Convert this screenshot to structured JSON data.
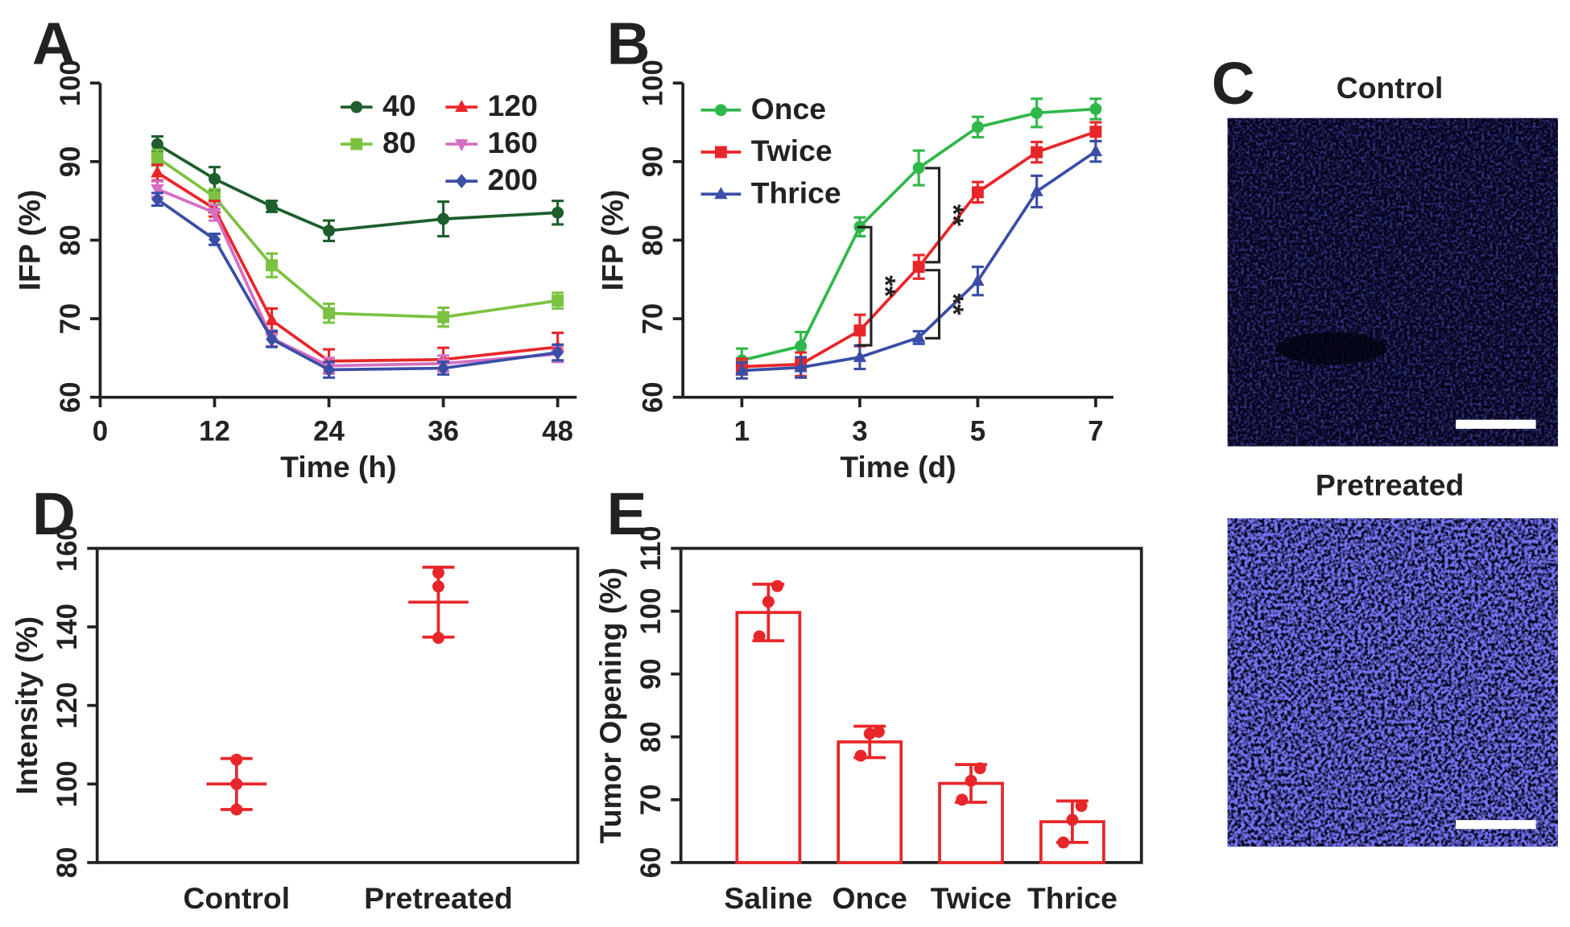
{
  "chart_data": [
    {
      "type": "line",
      "panel": "A",
      "xlabel": "Time (h)",
      "ylabel": "IFP (%)",
      "x": [
        6,
        12,
        18,
        24,
        36,
        48
      ],
      "xlim": [
        0,
        50
      ],
      "xticks": [
        0,
        12,
        24,
        36,
        48
      ],
      "ylim": [
        60,
        100
      ],
      "yticks": [
        60,
        70,
        80,
        90,
        100
      ],
      "legend": "upper right",
      "series": [
        {
          "name": "40",
          "color": "#1d5e2c",
          "marker": "circle",
          "values": [
            92.2,
            87.8,
            84.3,
            81.2,
            82.7,
            83.5
          ],
          "errors": [
            1.0,
            1.5,
            0.7,
            1.3,
            2.2,
            1.5
          ]
        },
        {
          "name": "80",
          "color": "#7cc242",
          "marker": "square",
          "values": [
            90.5,
            85.5,
            76.8,
            70.7,
            70.2,
            72.3
          ],
          "errors": [
            1.0,
            1.0,
            1.5,
            1.2,
            1.2,
            1.0
          ]
        },
        {
          "name": "120",
          "color": "#e8262a",
          "marker": "triangle-up",
          "values": [
            88.6,
            84.0,
            69.8,
            64.6,
            64.8,
            66.4
          ],
          "errors": [
            1.0,
            1.0,
            1.5,
            1.5,
            1.5,
            1.8
          ]
        },
        {
          "name": "160",
          "color": "#d46fc4",
          "marker": "triangle-down",
          "values": [
            86.5,
            83.5,
            67.5,
            64.0,
            64.3,
            65.5
          ],
          "errors": [
            1.0,
            1.0,
            1.0,
            1.0,
            1.0,
            1.0
          ]
        },
        {
          "name": "200",
          "color": "#3a4ea6",
          "marker": "diamond",
          "values": [
            85.2,
            80.1,
            67.4,
            63.5,
            63.7,
            65.7
          ],
          "errors": [
            0.8,
            0.7,
            1.0,
            1.0,
            0.8,
            1.0
          ]
        }
      ]
    },
    {
      "type": "line",
      "panel": "B",
      "xlabel": "Time (d)",
      "ylabel": "IFP (%)",
      "x": [
        1,
        2,
        3,
        4,
        5,
        6,
        7
      ],
      "xlim": [
        0,
        7.3
      ],
      "xticks": [
        1,
        3,
        5,
        7
      ],
      "ylim": [
        60,
        100
      ],
      "yticks": [
        60,
        70,
        80,
        90,
        100
      ],
      "legend": "upper left",
      "series": [
        {
          "name": "Once",
          "color": "#2fb84a",
          "marker": "circle",
          "values": [
            64.7,
            66.5,
            81.7,
            89.2,
            94.4,
            96.2,
            96.7
          ],
          "errors": [
            1.5,
            1.8,
            1.2,
            2.2,
            1.3,
            1.8,
            1.3
          ]
        },
        {
          "name": "Twice",
          "color": "#e8262a",
          "marker": "square",
          "values": [
            63.9,
            64.2,
            68.5,
            76.6,
            86.1,
            91.2,
            93.8
          ],
          "errors": [
            1.0,
            1.5,
            2.0,
            1.5,
            1.3,
            1.3,
            1.2
          ]
        },
        {
          "name": "Thrice",
          "color": "#3a4ea6",
          "marker": "triangle-up",
          "values": [
            63.4,
            63.8,
            65.1,
            67.6,
            74.8,
            86.2,
            91.3
          ],
          "errors": [
            1.0,
            1.3,
            1.5,
            0.8,
            1.8,
            2.0,
            1.3
          ]
        }
      ],
      "annotations": [
        "**",
        "**",
        "**"
      ]
    },
    {
      "type": "image",
      "panel": "C",
      "labels": [
        "Control",
        "Pretreated"
      ]
    },
    {
      "type": "dotplot",
      "panel": "D",
      "ylabel": "Intensity (%)",
      "categories": [
        "Control",
        "Pretreated"
      ],
      "values": [
        100,
        146.3
      ],
      "errors": [
        6.5,
        8.9
      ],
      "points": [
        [
          93.5,
          100,
          106.2
        ],
        [
          137.2,
          150.3,
          153.8
        ]
      ],
      "color": "#e8262a",
      "ylim": [
        80,
        160
      ],
      "yticks": [
        80,
        100,
        120,
        140,
        160
      ],
      "frame": true
    },
    {
      "type": "bar",
      "panel": "E",
      "ylabel": "Tumor Opening (%)",
      "categories": [
        "Saline",
        "Once",
        "Twice",
        "Thrice"
      ],
      "values": [
        99.8,
        79.2,
        72.6,
        66.5
      ],
      "errors": [
        4.5,
        2.5,
        3.0,
        3.3
      ],
      "points": [
        [
          96,
          101.5,
          104
        ],
        [
          77,
          80.5,
          80.8
        ],
        [
          70,
          73,
          75
        ],
        [
          63.2,
          66.8,
          69
        ]
      ],
      "color": "#e8262a",
      "ylim": [
        60,
        110
      ],
      "yticks": [
        60,
        70,
        80,
        90,
        100,
        110
      ],
      "frame": true
    }
  ]
}
